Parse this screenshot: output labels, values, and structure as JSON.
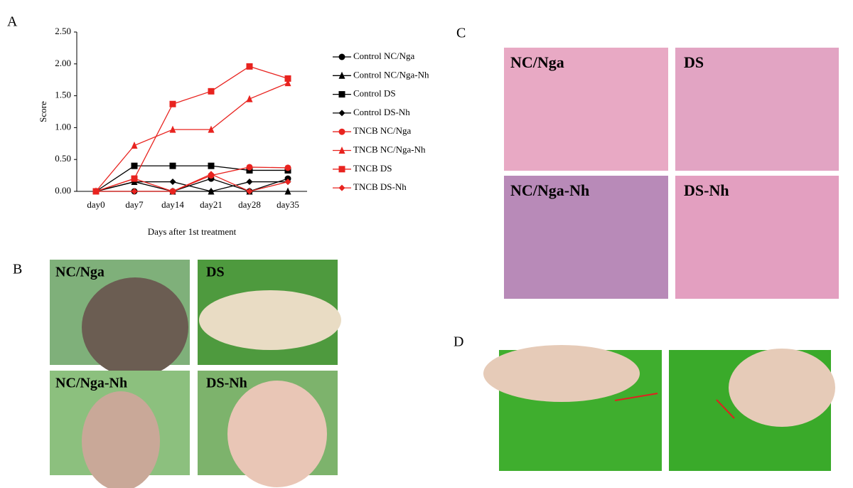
{
  "panels": {
    "a": "A",
    "b": "B",
    "c": "C",
    "d": "D"
  },
  "photos_b": [
    "NC/Nga",
    "DS",
    "NC/Nga-Nh",
    "DS-Nh"
  ],
  "photos_c": [
    "NC/Nga",
    "DS",
    "NC/Nga-Nh",
    "DS-Nh"
  ],
  "chart_data": {
    "type": "line",
    "y_label": "Score",
    "x_label": "Days after 1st treatment",
    "categories": [
      "day0",
      "day7",
      "day14",
      "day21",
      "day28",
      "day35"
    ],
    "ylim": [
      0,
      2.5
    ],
    "yticks": [
      {
        "value": 0,
        "label": "0.00"
      },
      {
        "value": 0.5,
        "label": "0.50"
      },
      {
        "value": 1,
        "label": "1.00"
      },
      {
        "value": 1.5,
        "label": "1.50"
      },
      {
        "value": 2,
        "label": "2.00"
      },
      {
        "value": 2.5,
        "label": "2.50"
      }
    ],
    "series": [
      {
        "name": "Control NC/Nga",
        "color": "#000000",
        "marker": "circle",
        "values": [
          0,
          0,
          0,
          0.2,
          0,
          0.2
        ]
      },
      {
        "name": "Control NC/Nga-Nh",
        "color": "#000000",
        "marker": "triangle",
        "values": [
          0,
          0.15,
          0,
          0,
          0,
          0
        ]
      },
      {
        "name": "Control DS",
        "color": "#000000",
        "marker": "square",
        "values": [
          0,
          0.4,
          0.4,
          0.4,
          0.33,
          0.33
        ]
      },
      {
        "name": "Control DS-Nh",
        "color": "#000000",
        "marker": "diamond",
        "values": [
          0,
          0.15,
          0.15,
          0,
          0.15,
          0.15
        ]
      },
      {
        "name": "TNCB NC/Nga",
        "color": "#e8231f",
        "marker": "circle",
        "values": [
          0,
          0.2,
          0,
          0.25,
          0.38,
          0.37
        ]
      },
      {
        "name": "TNCB NC/Nga-Nh",
        "color": "#e8231f",
        "marker": "triangle",
        "values": [
          0,
          0.72,
          0.97,
          0.97,
          1.45,
          1.7
        ]
      },
      {
        "name": "TNCB DS",
        "color": "#e8231f",
        "marker": "square",
        "values": [
          0,
          0.2,
          1.37,
          1.57,
          1.96,
          1.77
        ]
      },
      {
        "name": "TNCB DS-Nh",
        "color": "#e8231f",
        "marker": "diamond",
        "values": [
          0,
          0,
          0,
          0.27,
          0,
          0.15
        ]
      }
    ]
  }
}
